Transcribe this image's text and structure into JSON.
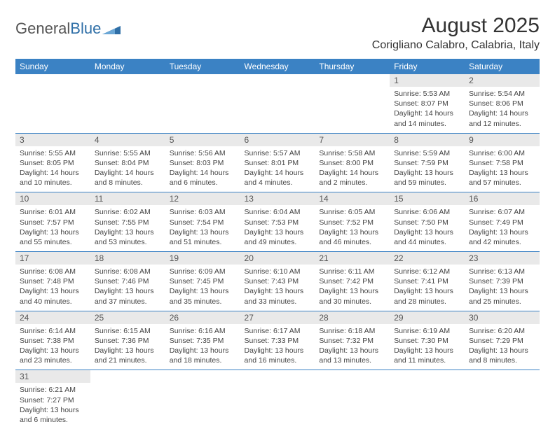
{
  "brand": {
    "name1": "General",
    "name2": "Blue"
  },
  "title": "August 2025",
  "location": "Corigliano Calabro, Calabria, Italy",
  "colors": {
    "header_bg": "#3b82c4",
    "header_text": "#ffffff",
    "daynum_bg": "#e9e9e9",
    "cell_border": "#3b82c4",
    "text": "#333333",
    "logo_gray": "#555555",
    "logo_blue": "#2f6fa7"
  },
  "columns": [
    "Sunday",
    "Monday",
    "Tuesday",
    "Wednesday",
    "Thursday",
    "Friday",
    "Saturday"
  ],
  "weeks": [
    [
      null,
      null,
      null,
      null,
      null,
      {
        "n": "1",
        "sunrise": "Sunrise: 5:53 AM",
        "sunset": "Sunset: 8:07 PM",
        "daylight": "Daylight: 14 hours and 14 minutes."
      },
      {
        "n": "2",
        "sunrise": "Sunrise: 5:54 AM",
        "sunset": "Sunset: 8:06 PM",
        "daylight": "Daylight: 14 hours and 12 minutes."
      }
    ],
    [
      {
        "n": "3",
        "sunrise": "Sunrise: 5:55 AM",
        "sunset": "Sunset: 8:05 PM",
        "daylight": "Daylight: 14 hours and 10 minutes."
      },
      {
        "n": "4",
        "sunrise": "Sunrise: 5:55 AM",
        "sunset": "Sunset: 8:04 PM",
        "daylight": "Daylight: 14 hours and 8 minutes."
      },
      {
        "n": "5",
        "sunrise": "Sunrise: 5:56 AM",
        "sunset": "Sunset: 8:03 PM",
        "daylight": "Daylight: 14 hours and 6 minutes."
      },
      {
        "n": "6",
        "sunrise": "Sunrise: 5:57 AM",
        "sunset": "Sunset: 8:01 PM",
        "daylight": "Daylight: 14 hours and 4 minutes."
      },
      {
        "n": "7",
        "sunrise": "Sunrise: 5:58 AM",
        "sunset": "Sunset: 8:00 PM",
        "daylight": "Daylight: 14 hours and 2 minutes."
      },
      {
        "n": "8",
        "sunrise": "Sunrise: 5:59 AM",
        "sunset": "Sunset: 7:59 PM",
        "daylight": "Daylight: 13 hours and 59 minutes."
      },
      {
        "n": "9",
        "sunrise": "Sunrise: 6:00 AM",
        "sunset": "Sunset: 7:58 PM",
        "daylight": "Daylight: 13 hours and 57 minutes."
      }
    ],
    [
      {
        "n": "10",
        "sunrise": "Sunrise: 6:01 AM",
        "sunset": "Sunset: 7:57 PM",
        "daylight": "Daylight: 13 hours and 55 minutes."
      },
      {
        "n": "11",
        "sunrise": "Sunrise: 6:02 AM",
        "sunset": "Sunset: 7:55 PM",
        "daylight": "Daylight: 13 hours and 53 minutes."
      },
      {
        "n": "12",
        "sunrise": "Sunrise: 6:03 AM",
        "sunset": "Sunset: 7:54 PM",
        "daylight": "Daylight: 13 hours and 51 minutes."
      },
      {
        "n": "13",
        "sunrise": "Sunrise: 6:04 AM",
        "sunset": "Sunset: 7:53 PM",
        "daylight": "Daylight: 13 hours and 49 minutes."
      },
      {
        "n": "14",
        "sunrise": "Sunrise: 6:05 AM",
        "sunset": "Sunset: 7:52 PM",
        "daylight": "Daylight: 13 hours and 46 minutes."
      },
      {
        "n": "15",
        "sunrise": "Sunrise: 6:06 AM",
        "sunset": "Sunset: 7:50 PM",
        "daylight": "Daylight: 13 hours and 44 minutes."
      },
      {
        "n": "16",
        "sunrise": "Sunrise: 6:07 AM",
        "sunset": "Sunset: 7:49 PM",
        "daylight": "Daylight: 13 hours and 42 minutes."
      }
    ],
    [
      {
        "n": "17",
        "sunrise": "Sunrise: 6:08 AM",
        "sunset": "Sunset: 7:48 PM",
        "daylight": "Daylight: 13 hours and 40 minutes."
      },
      {
        "n": "18",
        "sunrise": "Sunrise: 6:08 AM",
        "sunset": "Sunset: 7:46 PM",
        "daylight": "Daylight: 13 hours and 37 minutes."
      },
      {
        "n": "19",
        "sunrise": "Sunrise: 6:09 AM",
        "sunset": "Sunset: 7:45 PM",
        "daylight": "Daylight: 13 hours and 35 minutes."
      },
      {
        "n": "20",
        "sunrise": "Sunrise: 6:10 AM",
        "sunset": "Sunset: 7:43 PM",
        "daylight": "Daylight: 13 hours and 33 minutes."
      },
      {
        "n": "21",
        "sunrise": "Sunrise: 6:11 AM",
        "sunset": "Sunset: 7:42 PM",
        "daylight": "Daylight: 13 hours and 30 minutes."
      },
      {
        "n": "22",
        "sunrise": "Sunrise: 6:12 AM",
        "sunset": "Sunset: 7:41 PM",
        "daylight": "Daylight: 13 hours and 28 minutes."
      },
      {
        "n": "23",
        "sunrise": "Sunrise: 6:13 AM",
        "sunset": "Sunset: 7:39 PM",
        "daylight": "Daylight: 13 hours and 25 minutes."
      }
    ],
    [
      {
        "n": "24",
        "sunrise": "Sunrise: 6:14 AM",
        "sunset": "Sunset: 7:38 PM",
        "daylight": "Daylight: 13 hours and 23 minutes."
      },
      {
        "n": "25",
        "sunrise": "Sunrise: 6:15 AM",
        "sunset": "Sunset: 7:36 PM",
        "daylight": "Daylight: 13 hours and 21 minutes."
      },
      {
        "n": "26",
        "sunrise": "Sunrise: 6:16 AM",
        "sunset": "Sunset: 7:35 PM",
        "daylight": "Daylight: 13 hours and 18 minutes."
      },
      {
        "n": "27",
        "sunrise": "Sunrise: 6:17 AM",
        "sunset": "Sunset: 7:33 PM",
        "daylight": "Daylight: 13 hours and 16 minutes."
      },
      {
        "n": "28",
        "sunrise": "Sunrise: 6:18 AM",
        "sunset": "Sunset: 7:32 PM",
        "daylight": "Daylight: 13 hours and 13 minutes."
      },
      {
        "n": "29",
        "sunrise": "Sunrise: 6:19 AM",
        "sunset": "Sunset: 7:30 PM",
        "daylight": "Daylight: 13 hours and 11 minutes."
      },
      {
        "n": "30",
        "sunrise": "Sunrise: 6:20 AM",
        "sunset": "Sunset: 7:29 PM",
        "daylight": "Daylight: 13 hours and 8 minutes."
      }
    ],
    [
      {
        "n": "31",
        "sunrise": "Sunrise: 6:21 AM",
        "sunset": "Sunset: 7:27 PM",
        "daylight": "Daylight: 13 hours and 6 minutes."
      },
      null,
      null,
      null,
      null,
      null,
      null
    ]
  ]
}
